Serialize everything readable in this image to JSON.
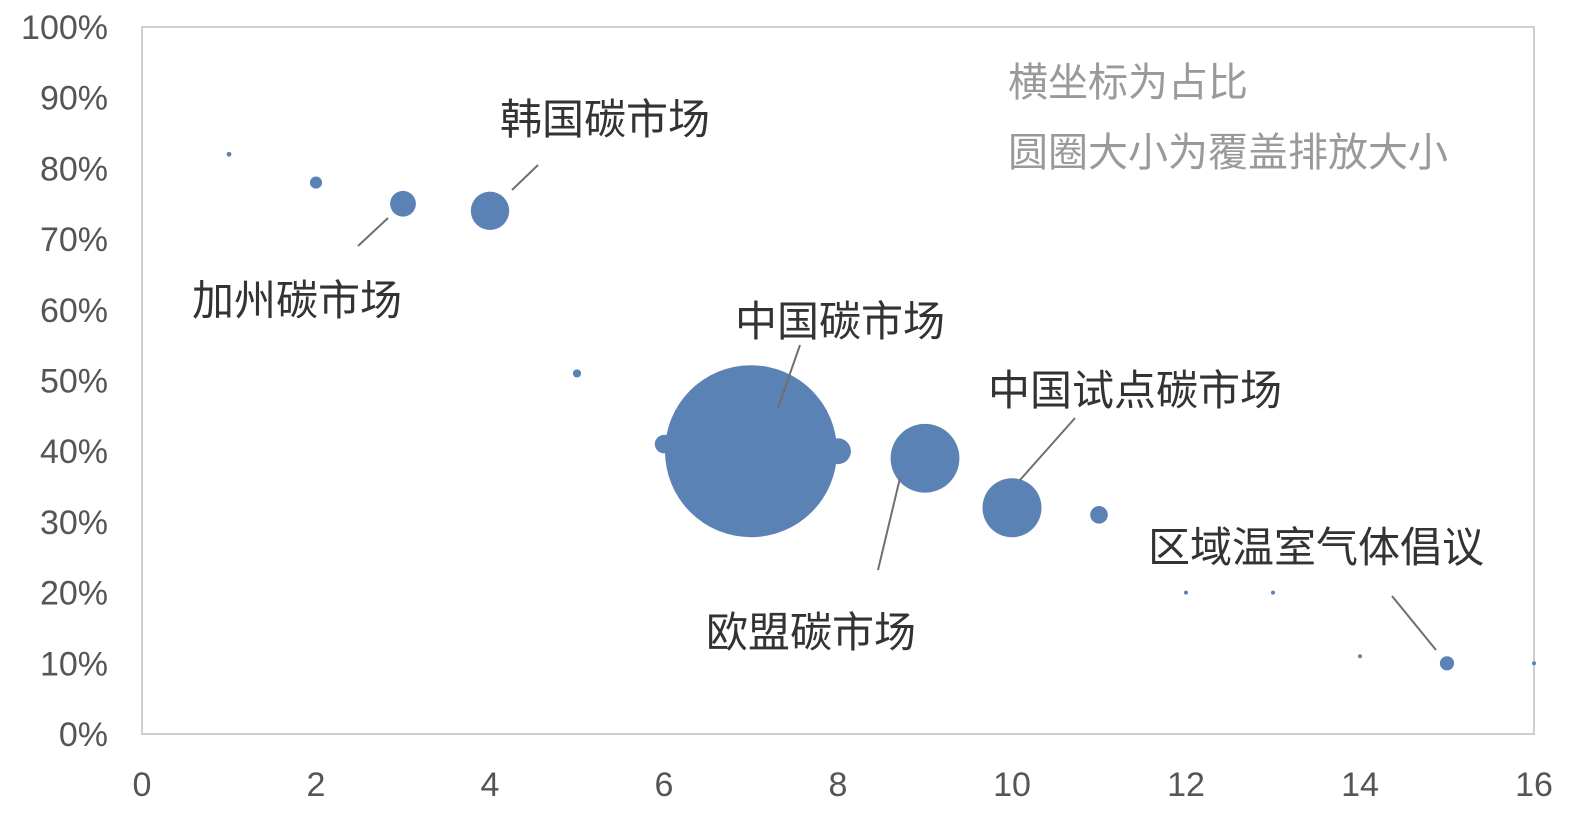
{
  "chart_data": {
    "type": "scatter",
    "x_ticks": [
      "0",
      "2",
      "4",
      "6",
      "8",
      "10",
      "12",
      "14",
      "16"
    ],
    "y_ticks": [
      "0%",
      "10%",
      "20%",
      "30%",
      "40%",
      "50%",
      "60%",
      "70%",
      "80%",
      "90%",
      "100%"
    ],
    "xlim": [
      0,
      16
    ],
    "ylim": [
      0,
      100
    ],
    "grid": false,
    "bubble_color": "#5b82b5",
    "notes": [
      "横坐标为占比",
      "圆圈大小为覆盖排放大小"
    ],
    "points": [
      {
        "x": 1,
        "y": 82,
        "size": 0.3
      },
      {
        "x": 2,
        "y": 78,
        "size": 2
      },
      {
        "x": 3,
        "y": 75,
        "size": 9
      },
      {
        "x": 4,
        "y": 74,
        "size": 20
      },
      {
        "x": 5,
        "y": 51,
        "size": 0.9
      },
      {
        "x": 6,
        "y": 41,
        "size": 4.6
      },
      {
        "x": 7,
        "y": 40,
        "size": 400
      },
      {
        "x": 8,
        "y": 40,
        "size": 9
      },
      {
        "x": 9,
        "y": 39,
        "size": 64
      },
      {
        "x": 10,
        "y": 32,
        "size": 47
      },
      {
        "x": 11,
        "y": 31,
        "size": 4.2
      },
      {
        "x": 12,
        "y": 20,
        "size": 0.1
      },
      {
        "x": 13,
        "y": 20,
        "size": 0.1
      },
      {
        "x": 14,
        "y": 11,
        "size": 0.15
      },
      {
        "x": 15,
        "y": 10,
        "size": 2.7
      },
      {
        "x": 16,
        "y": 10,
        "size": 0.03
      }
    ],
    "annotations": [
      {
        "text": "韩国碳市场",
        "point_x": 4,
        "point_y": 74
      },
      {
        "text": "加州碳市场",
        "point_x": 3,
        "point_y": 75
      },
      {
        "text": "中国碳市场",
        "point_x": 7,
        "point_y": 40
      },
      {
        "text": "中国试点碳市场",
        "point_x": 10,
        "point_y": 32
      },
      {
        "text": "欧盟碳市场",
        "point_x": 9,
        "point_y": 39
      },
      {
        "text": "区域温室气体倡议",
        "point_x": 15,
        "point_y": 10
      }
    ]
  }
}
